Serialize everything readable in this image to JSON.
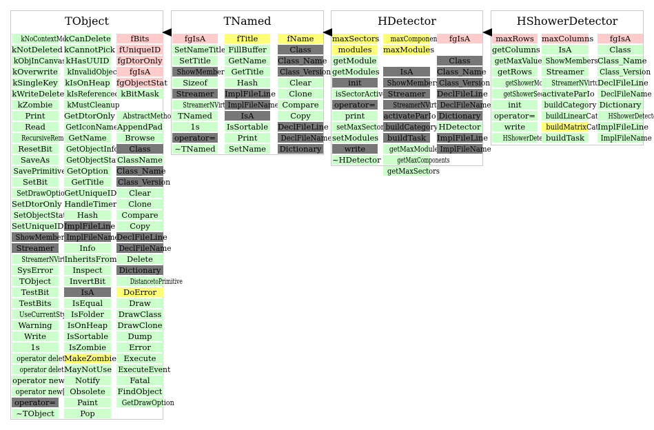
{
  "colors": {
    "method": "#ccffcc",
    "data_member": "#ffcccc",
    "string_member": "#ffff77",
    "inherited": "#777777",
    "border": "#c8c8c8"
  },
  "classes": [
    {
      "title": "TObject",
      "columns": [
        [
          [
            "kNoContextMenu",
            "green"
          ],
          [
            "kNotDeleted",
            "green"
          ],
          [
            "kObjInCanvas",
            "green"
          ],
          [
            "kOverwrite",
            "green"
          ],
          [
            "kSingleKey",
            "green"
          ],
          [
            "kWriteDelete",
            "green"
          ],
          [
            "kZombie",
            "green"
          ],
          [
            "Print",
            "green"
          ],
          [
            "Read",
            "green"
          ],
          [
            "RecursiveRemove",
            "green"
          ],
          [
            "ResetBit",
            "green"
          ],
          [
            "SaveAs",
            "green"
          ],
          [
            "SavePrimitive",
            "green"
          ],
          [
            "SetBit",
            "green"
          ],
          [
            "SetDrawOption",
            "green"
          ],
          [
            "SetDtorOnly",
            "green"
          ],
          [
            "SetObjectStat",
            "green"
          ],
          [
            "SetUniqueID",
            "green"
          ],
          [
            "ShowMembers",
            "gray"
          ],
          [
            "Streamer",
            "gray"
          ],
          [
            "StreamerNVirtual",
            "green"
          ],
          [
            "SysError",
            "green"
          ],
          [
            "TObject",
            "green"
          ],
          [
            "TestBit",
            "green"
          ],
          [
            "TestBits",
            "green"
          ],
          [
            "UseCurrentStyle",
            "green"
          ],
          [
            "Warning",
            "green"
          ],
          [
            "Write",
            "green"
          ],
          [
            "1s",
            "green"
          ],
          [
            "operator delete",
            "green"
          ],
          [
            "operator delete[]",
            "green"
          ],
          [
            "operator new",
            "green"
          ],
          [
            "operator new[]",
            "green"
          ],
          [
            "operator=",
            "gray"
          ],
          [
            "~TObject",
            "green"
          ]
        ],
        [
          [
            "kCanDelete",
            "green"
          ],
          [
            "kCannotPick",
            "green"
          ],
          [
            "kHasUUID",
            "green"
          ],
          [
            "kInvalidObject",
            "green"
          ],
          [
            "kIsOnHeap",
            "green"
          ],
          [
            "kIsReferenced",
            "green"
          ],
          [
            "kMustCleanup",
            "green"
          ],
          [
            "GetDtorOnly",
            "green"
          ],
          [
            "GetIconName",
            "green"
          ],
          [
            "GetName",
            "green"
          ],
          [
            "GetObjectInfo",
            "green"
          ],
          [
            "GetObjectStat",
            "green"
          ],
          [
            "GetOption",
            "green"
          ],
          [
            "GetTitle",
            "green"
          ],
          [
            "GetUniqueID",
            "green"
          ],
          [
            "HandleTimer",
            "green"
          ],
          [
            "Hash",
            "green"
          ],
          [
            "ImplFileLine",
            "gray"
          ],
          [
            "ImplFileName",
            "gray"
          ],
          [
            "Info",
            "green"
          ],
          [
            "InheritsFrom",
            "green"
          ],
          [
            "Inspect",
            "green"
          ],
          [
            "InvertBit",
            "green"
          ],
          [
            "IsA",
            "gray"
          ],
          [
            "IsEqual",
            "green"
          ],
          [
            "IsFolder",
            "green"
          ],
          [
            "IsOnHeap",
            "green"
          ],
          [
            "IsSortable",
            "green"
          ],
          [
            "IsZombie",
            "green"
          ],
          [
            "MakeZombie",
            "yellow"
          ],
          [
            "MayNotUse",
            "green"
          ],
          [
            "Notify",
            "green"
          ],
          [
            "Obsolete",
            "green"
          ],
          [
            "Paint",
            "green"
          ],
          [
            "Pop",
            "green"
          ]
        ],
        [
          [
            "fBits",
            "pink"
          ],
          [
            "fUniqueID",
            "pink"
          ],
          [
            "fgDtorOnly",
            "pink"
          ],
          [
            "fgIsA",
            "pink"
          ],
          [
            "fgObjectStat",
            "pink"
          ],
          [
            "kBitMask",
            "green"
          ],
          [
            "",
            "none"
          ],
          [
            "AbstractMethod",
            "green"
          ],
          [
            "AppendPad",
            "green"
          ],
          [
            "Browse",
            "green"
          ],
          [
            "Class",
            "gray"
          ],
          [
            "ClassName",
            "green"
          ],
          [
            "Class_Name",
            "gray"
          ],
          [
            "Class_Version",
            "gray"
          ],
          [
            "Clear",
            "green"
          ],
          [
            "Clone",
            "green"
          ],
          [
            "Compare",
            "green"
          ],
          [
            "Copy",
            "green"
          ],
          [
            "DeclFileLine",
            "gray"
          ],
          [
            "DeclFileName",
            "gray"
          ],
          [
            "Delete",
            "green"
          ],
          [
            "Dictionary",
            "gray"
          ],
          [
            "DistancetoPrimitive",
            "green"
          ],
          [
            "DoError",
            "yellow"
          ],
          [
            "Draw",
            "green"
          ],
          [
            "DrawClass",
            "green"
          ],
          [
            "DrawClone",
            "green"
          ],
          [
            "Dump",
            "green"
          ],
          [
            "Error",
            "green"
          ],
          [
            "Execute",
            "green"
          ],
          [
            "ExecuteEvent",
            "green"
          ],
          [
            "Fatal",
            "green"
          ],
          [
            "FindObject",
            "green"
          ],
          [
            "GetDrawOption",
            "green"
          ]
        ]
      ]
    },
    {
      "title": "TNamed",
      "columns": [
        [
          [
            "fgIsA",
            "pink"
          ],
          [
            "SetNameTitle",
            "green"
          ],
          [
            "SetTitle",
            "green"
          ],
          [
            "ShowMembers",
            "gray"
          ],
          [
            "Sizeof",
            "green"
          ],
          [
            "Streamer",
            "gray"
          ],
          [
            "StreamerNVirtual",
            "green"
          ],
          [
            "TNamed",
            "green"
          ],
          [
            "1s",
            "green"
          ],
          [
            "operator=",
            "gray"
          ],
          [
            "~TNamed",
            "green"
          ]
        ],
        [
          [
            "fTitle",
            "yellow"
          ],
          [
            "FillBuffer",
            "green"
          ],
          [
            "GetName",
            "green"
          ],
          [
            "GetTitle",
            "green"
          ],
          [
            "Hash",
            "green"
          ],
          [
            "ImplFileLine",
            "gray"
          ],
          [
            "ImplFileName",
            "gray"
          ],
          [
            "IsA",
            "gray"
          ],
          [
            "IsSortable",
            "green"
          ],
          [
            "Print",
            "green"
          ],
          [
            "SetName",
            "green"
          ]
        ],
        [
          [
            "fName",
            "yellow"
          ],
          [
            "Class",
            "gray"
          ],
          [
            "Class_Name",
            "gray"
          ],
          [
            "Class_Version",
            "gray"
          ],
          [
            "Clear",
            "green"
          ],
          [
            "Clone",
            "green"
          ],
          [
            "Compare",
            "green"
          ],
          [
            "Copy",
            "green"
          ],
          [
            "DeclFileLine",
            "gray"
          ],
          [
            "DeclFileName",
            "gray"
          ],
          [
            "Dictionary",
            "gray"
          ]
        ]
      ]
    },
    {
      "title": "HDetector",
      "columns": [
        [
          [
            "maxSectors",
            "yellow"
          ],
          [
            "modules",
            "yellow"
          ],
          [
            "getModule",
            "green"
          ],
          [
            "getModules",
            "green"
          ],
          [
            "init",
            "gray"
          ],
          [
            "isSectorActive",
            "green"
          ],
          [
            "operator=",
            "gray"
          ],
          [
            "print",
            "green"
          ],
          [
            "setMaxSectors",
            "green"
          ],
          [
            "setModules",
            "green"
          ],
          [
            "write",
            "gray"
          ],
          [
            "~HDetector",
            "green"
          ]
        ],
        [
          [
            "maxComponents",
            "yellow"
          ],
          [
            "maxModules",
            "yellow"
          ],
          [
            "",
            "none"
          ],
          [
            "IsA",
            "gray"
          ],
          [
            "ShowMembers",
            "gray"
          ],
          [
            "Streamer",
            "gray"
          ],
          [
            "StreamerNVirtual",
            "gray"
          ],
          [
            "activateParIo",
            "gray"
          ],
          [
            "buildCategory",
            "gray"
          ],
          [
            "buildTask",
            "gray"
          ],
          [
            "getMaxModules",
            "green"
          ],
          [
            "getMaxComponents",
            "green"
          ],
          [
            "getMaxSectors",
            "green"
          ]
        ],
        [
          [
            "fgIsA",
            "pink"
          ],
          [
            "",
            "none"
          ],
          [
            "Class",
            "gray"
          ],
          [
            "Class_Name",
            "gray"
          ],
          [
            "Class_Version",
            "gray"
          ],
          [
            "DeclFileLine",
            "gray"
          ],
          [
            "DeclFileName",
            "gray"
          ],
          [
            "Dictionary",
            "gray"
          ],
          [
            "HDetector",
            "green"
          ],
          [
            "ImplFileLine",
            "gray"
          ],
          [
            "ImplFileName",
            "gray"
          ]
        ]
      ]
    },
    {
      "title": "HShowerDetector",
      "columns": [
        [
          [
            "maxRows",
            "pink"
          ],
          [
            "getColumns",
            "green"
          ],
          [
            "getMaxValues",
            "green"
          ],
          [
            "getRows",
            "green"
          ],
          [
            "getShowerModules",
            "green"
          ],
          [
            "getShowerSectors",
            "green"
          ],
          [
            "init",
            "green"
          ],
          [
            "operator=",
            "green"
          ],
          [
            "write",
            "green"
          ],
          [
            "HShowerDetector",
            "green"
          ]
        ],
        [
          [
            "maxColumns",
            "pink"
          ],
          [
            "IsA",
            "green"
          ],
          [
            "ShowMembers",
            "green"
          ],
          [
            "Streamer",
            "green"
          ],
          [
            "StreamerNVirtual",
            "green"
          ],
          [
            "activateParIo",
            "green"
          ],
          [
            "buildCategory",
            "green"
          ],
          [
            "buildLinearCat",
            "green"
          ],
          [
            "buildMatrixCat",
            "yellow"
          ],
          [
            "buildTask",
            "green"
          ]
        ],
        [
          [
            "fgIsA",
            "pink"
          ],
          [
            "Class",
            "green"
          ],
          [
            "Class_Name",
            "green"
          ],
          [
            "Class_Version",
            "green"
          ],
          [
            "DeclFileLine",
            "green"
          ],
          [
            "DeclFileName",
            "green"
          ],
          [
            "Dictionary",
            "green"
          ],
          [
            "HShowerDetector",
            "green"
          ],
          [
            "ImplFileLine",
            "green"
          ],
          [
            "ImplFileName",
            "green"
          ]
        ]
      ]
    }
  ]
}
